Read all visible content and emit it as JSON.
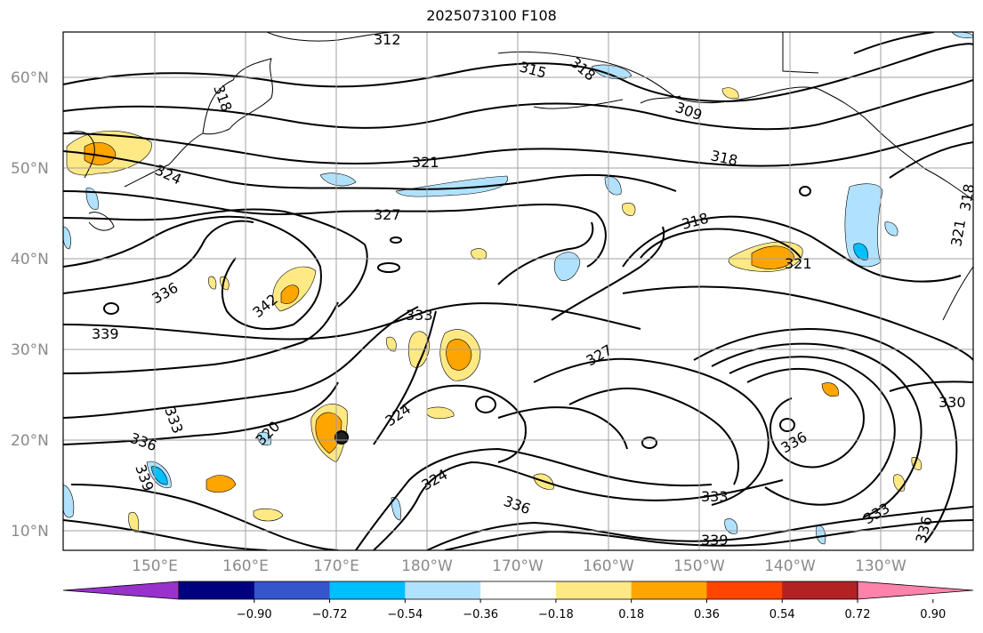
{
  "title": "2025073100 F108",
  "lat_ticks": [
    "60°N",
    "50°N",
    "40°N",
    "30°N",
    "20°N",
    "10°N"
  ],
  "lon_ticks": [
    "150°E",
    "160°E",
    "170°E",
    "180°W",
    "170°W",
    "160°W",
    "150°W",
    "140°W",
    "130°W"
  ],
  "contour_labels": [
    "312",
    "315",
    "318",
    "309",
    "318",
    "321",
    "318",
    "324",
    "327",
    "318",
    "321",
    "336",
    "342",
    "333",
    "339",
    "327",
    "324",
    "333",
    "336",
    "339",
    "320",
    "324",
    "336",
    "333",
    "339",
    "336",
    "333",
    "336",
    "330",
    "321",
    "318"
  ],
  "colorbar": {
    "labels": [
      "−0.90",
      "−0.72",
      "−0.54",
      "−0.36",
      "−0.18",
      "0.18",
      "0.36",
      "0.54",
      "0.72",
      "0.90"
    ],
    "colors": [
      "#9932cc",
      "#000080",
      "#3455cc",
      "#00bfff",
      "#b0e2ff",
      "#ffffff",
      "#ffe985",
      "#ffa500",
      "#ff4500",
      "#b22222",
      "#ff82ab"
    ]
  },
  "legend_colors": {
    "positive_fill": "#ffe985",
    "strong_positive": "#ffa500",
    "negative_fill": "#b0e2ff",
    "strong_negative": "#00bfff",
    "contour": "#000000",
    "grid": "#a0a0a0"
  }
}
